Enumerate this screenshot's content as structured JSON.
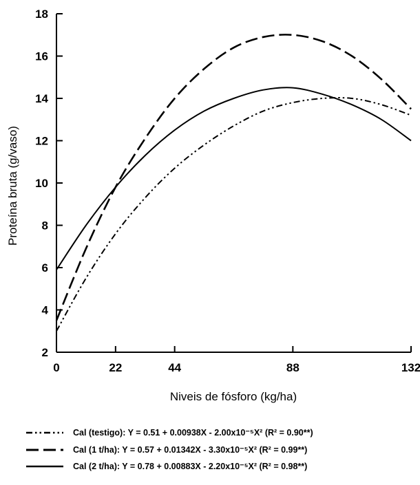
{
  "chart_data": {
    "type": "line",
    "xlabel": "Niveis de fósforo (kg/ha)",
    "ylabel": "Proteína bruta (g/vaso)",
    "xlim": [
      0,
      132
    ],
    "ylim": [
      2,
      18
    ],
    "xticks": [
      0,
      22,
      44,
      88,
      132
    ],
    "yticks": [
      2,
      4,
      6,
      8,
      10,
      12,
      14,
      16,
      18
    ],
    "grid": false,
    "legend_position": "bottom",
    "series": [
      {
        "name": "Cal (testigo): Y = 0.51 + 0.00938X - 2.00x10⁻⁵X²  (R² = 0.90**)",
        "style": "dash-dot-dot",
        "x": [
          0,
          11,
          22,
          33,
          44,
          55,
          66,
          77,
          88,
          99,
          110,
          121,
          132
        ],
        "y": [
          3.0,
          5.5,
          7.6,
          9.3,
          10.7,
          11.8,
          12.7,
          13.4,
          13.8,
          14.0,
          14.0,
          13.7,
          13.2
        ]
      },
      {
        "name": "Cal (1 t/ha): Y = 0.57 + 0.01342X - 3.30x10⁻⁵X²  (R² = 0.99**)",
        "style": "dashed",
        "x": [
          0,
          11,
          22,
          33,
          44,
          55,
          66,
          77,
          88,
          99,
          110,
          121,
          132
        ],
        "y": [
          3.5,
          6.9,
          9.8,
          12.1,
          14.0,
          15.4,
          16.4,
          16.9,
          17.0,
          16.7,
          16.0,
          14.9,
          13.5
        ]
      },
      {
        "name": "Cal (2 t/ha): Y = 0.78 + 0.00883X - 2.20x10⁻⁵X²  (R² = 0.98**)",
        "style": "solid",
        "x": [
          0,
          11,
          22,
          33,
          44,
          55,
          66,
          77,
          88,
          99,
          110,
          121,
          132
        ],
        "y": [
          5.9,
          8.0,
          9.8,
          11.3,
          12.5,
          13.4,
          14.0,
          14.4,
          14.5,
          14.2,
          13.7,
          13.0,
          12.0
        ]
      }
    ]
  }
}
